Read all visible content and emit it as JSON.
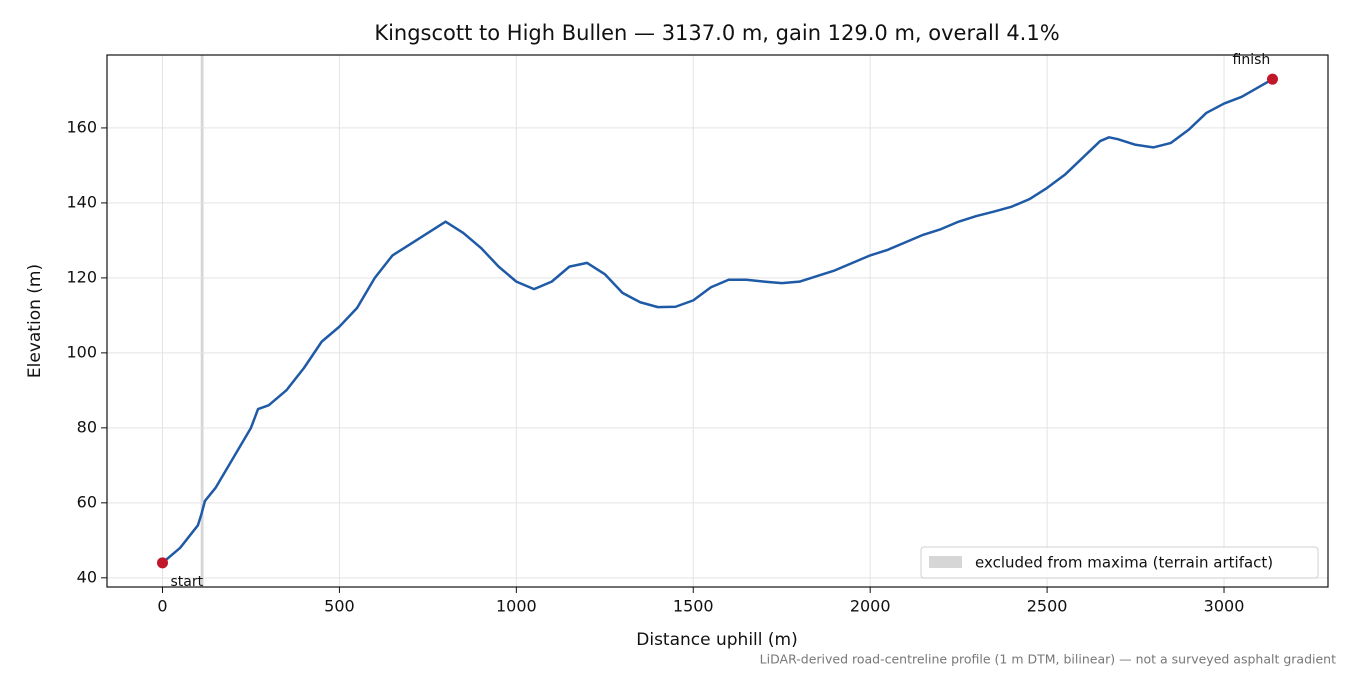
{
  "chart_data": {
    "type": "line",
    "title": "Kingscott to High Bullen — 3137.0 m, gain 129.0 m, overall 4.1%",
    "xlabel": "Distance uphill (m)",
    "ylabel": "Elevation (m)",
    "footnote": "LiDAR-derived road-centreline profile (1 m DTM, bilinear) — not a surveyed asphalt gradient",
    "x": [
      0,
      50,
      100,
      110,
      120,
      150,
      200,
      250,
      270,
      300,
      350,
      400,
      450,
      500,
      550,
      600,
      650,
      700,
      750,
      800,
      850,
      900,
      950,
      1000,
      1050,
      1100,
      1150,
      1200,
      1250,
      1300,
      1350,
      1400,
      1450,
      1500,
      1550,
      1600,
      1650,
      1700,
      1750,
      1800,
      1850,
      1900,
      1950,
      2000,
      2050,
      2100,
      2150,
      2200,
      2250,
      2300,
      2350,
      2400,
      2450,
      2500,
      2550,
      2600,
      2650,
      2675,
      2700,
      2750,
      2800,
      2850,
      2900,
      2950,
      3000,
      3050,
      3100,
      3137
    ],
    "series": [
      {
        "color": "#1f5aa6",
        "values": [
          44,
          48,
          54,
          57,
          60.5,
          64,
          72,
          80,
          85,
          86,
          90,
          96,
          103,
          107,
          112,
          120,
          126,
          129,
          132,
          135,
          132,
          128,
          123,
          119,
          117,
          119,
          123,
          124,
          121,
          116,
          113.5,
          112.2,
          112.3,
          114,
          117.5,
          119.5,
          119.5,
          119,
          118.6,
          119,
          120.5,
          122,
          124,
          126,
          127.5,
          129.5,
          131.5,
          133,
          135,
          136.5,
          137.7,
          139,
          141,
          144,
          147.5,
          152,
          156.5,
          157.5,
          157,
          155.5,
          154.8,
          156,
          159.5,
          164,
          166.5,
          168.3,
          171,
          173
        ]
      }
    ],
    "markers": [
      {
        "label": "start",
        "x": 0,
        "y": 44,
        "color": "#c0182a"
      },
      {
        "label": "finish",
        "x": 3137,
        "y": 173,
        "color": "#c0182a"
      }
    ],
    "span": {
      "label": "excluded from maxima (terrain artifact)",
      "x": [
        108,
        116
      ],
      "color": "#bbbbbb"
    },
    "xlim": [
      -156.85,
      3293.85
    ],
    "ylim": [
      37.55,
      179.45
    ],
    "xticks": [
      0,
      500,
      1000,
      1500,
      2000,
      2500,
      3000
    ],
    "yticks": [
      40,
      60,
      80,
      100,
      120,
      140,
      160
    ],
    "grid": true,
    "legend": "lower right"
  }
}
